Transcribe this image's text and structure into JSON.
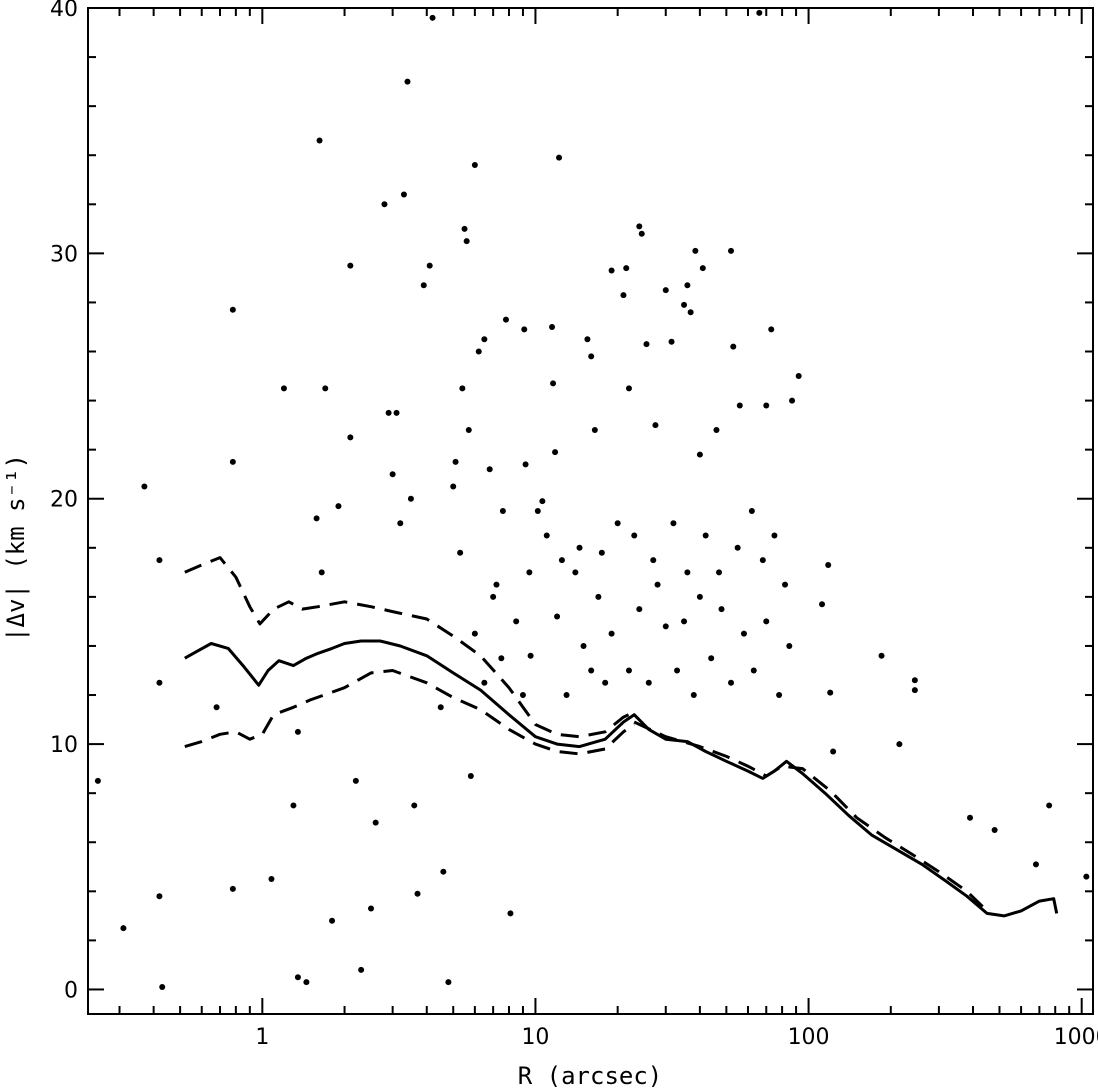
{
  "chart_data": {
    "type": "scatter",
    "title": "",
    "xlabel": "R (arcsec)",
    "ylabel": "|Δv| (km s⁻¹)",
    "x_scale": "log",
    "xlim": [
      0.23,
      1100
    ],
    "ylim": [
      -1,
      40
    ],
    "grid": false,
    "legend": "none",
    "x_ticks": [
      1,
      10,
      100,
      1000
    ],
    "x_tick_labels": [
      "1",
      "10",
      "100",
      "1000"
    ],
    "y_ticks": [
      0,
      10,
      20,
      30,
      40
    ],
    "y_tick_labels": [
      "0",
      "10",
      "20",
      "30",
      "40"
    ],
    "series": [
      {
        "style": "points",
        "color": "#000000",
        "points": [
          [
            0.25,
            8.5
          ],
          [
            0.31,
            2.5
          ],
          [
            0.37,
            20.5
          ],
          [
            0.42,
            17.5
          ],
          [
            0.42,
            12.5
          ],
          [
            0.42,
            3.8
          ],
          [
            0.43,
            0.1
          ],
          [
            0.68,
            11.5
          ],
          [
            0.78,
            27.7
          ],
          [
            0.78,
            21.5
          ],
          [
            0.78,
            4.1
          ],
          [
            1.08,
            4.5
          ],
          [
            1.2,
            24.5
          ],
          [
            1.3,
            7.5
          ],
          [
            1.35,
            10.5
          ],
          [
            1.35,
            0.5
          ],
          [
            1.45,
            0.3
          ],
          [
            1.58,
            19.2
          ],
          [
            1.62,
            34.6
          ],
          [
            1.65,
            17.0
          ],
          [
            1.7,
            24.5
          ],
          [
            1.8,
            2.8
          ],
          [
            1.9,
            19.7
          ],
          [
            2.1,
            29.5
          ],
          [
            2.1,
            22.5
          ],
          [
            2.2,
            8.5
          ],
          [
            2.3,
            0.8
          ],
          [
            2.5,
            3.3
          ],
          [
            2.6,
            6.8
          ],
          [
            2.8,
            32.0
          ],
          [
            2.9,
            23.5
          ],
          [
            3.0,
            21.0
          ],
          [
            3.1,
            23.5
          ],
          [
            3.2,
            19.0
          ],
          [
            3.3,
            32.4
          ],
          [
            3.4,
            37.0
          ],
          [
            3.5,
            20.0
          ],
          [
            3.6,
            7.5
          ],
          [
            3.7,
            3.9
          ],
          [
            3.9,
            28.7
          ],
          [
            4.1,
            29.5
          ],
          [
            4.2,
            39.6
          ],
          [
            4.5,
            11.5
          ],
          [
            4.6,
            4.8
          ],
          [
            4.8,
            0.3
          ],
          [
            5.0,
            20.5
          ],
          [
            5.1,
            21.5
          ],
          [
            5.3,
            17.8
          ],
          [
            5.4,
            24.5
          ],
          [
            5.5,
            31.0
          ],
          [
            5.6,
            30.5
          ],
          [
            5.7,
            22.8
          ],
          [
            5.8,
            8.7
          ],
          [
            6.0,
            33.6
          ],
          [
            6.2,
            26.0
          ],
          [
            6.5,
            26.5
          ],
          [
            6.8,
            21.2
          ],
          [
            7.2,
            16.5
          ],
          [
            7.6,
            19.5
          ],
          [
            7.8,
            27.3
          ],
          [
            8.1,
            3.1
          ],
          [
            9.1,
            26.9
          ],
          [
            9.2,
            21.4
          ],
          [
            9.6,
            13.6
          ],
          [
            10.2,
            19.5
          ],
          [
            10.6,
            19.9
          ],
          [
            11.5,
            27.0
          ],
          [
            11.6,
            24.7
          ],
          [
            11.8,
            21.9
          ],
          [
            12.2,
            33.9
          ],
          [
            15.5,
            26.5
          ],
          [
            16.0,
            25.8
          ],
          [
            16.5,
            22.8
          ],
          [
            19.0,
            29.3
          ],
          [
            20.0,
            19.0
          ],
          [
            21.5,
            29.4
          ],
          [
            21.0,
            28.3
          ],
          [
            22.0,
            24.5
          ],
          [
            24.0,
            31.1
          ],
          [
            24.5,
            30.8
          ],
          [
            25.5,
            26.3
          ],
          [
            27.5,
            23.0
          ],
          [
            30.0,
            28.5
          ],
          [
            31.5,
            26.4
          ],
          [
            35.0,
            27.9
          ],
          [
            36.0,
            28.7
          ],
          [
            37.0,
            27.6
          ],
          [
            38.5,
            30.1
          ],
          [
            40.0,
            21.8
          ],
          [
            41.0,
            29.4
          ],
          [
            46.0,
            22.8
          ],
          [
            52.0,
            30.1
          ],
          [
            53.0,
            26.2
          ],
          [
            56.0,
            23.8
          ],
          [
            66.0,
            39.8
          ],
          [
            70.0,
            23.8
          ],
          [
            73.0,
            26.9
          ],
          [
            87.0,
            24.0
          ],
          [
            92.0,
            25.0
          ],
          [
            112.0,
            15.7
          ],
          [
            118.0,
            17.3
          ],
          [
            120.0,
            12.1
          ],
          [
            123.0,
            9.7
          ],
          [
            185.0,
            13.6
          ],
          [
            215.0,
            10.0
          ],
          [
            245.0,
            12.6
          ],
          [
            245.0,
            12.2
          ],
          [
            390.0,
            7.0
          ],
          [
            480.0,
            6.5
          ],
          [
            680.0,
            5.1
          ],
          [
            760.0,
            7.5
          ],
          [
            1040.0,
            4.6
          ],
          [
            12.0,
            15.2
          ],
          [
            13.0,
            12.0
          ],
          [
            14.0,
            17.0
          ],
          [
            15.0,
            14.0
          ],
          [
            16.0,
            13.0
          ],
          [
            17.0,
            16.0
          ],
          [
            18.0,
            12.5
          ],
          [
            19.0,
            14.5
          ],
          [
            22.0,
            13.0
          ],
          [
            24.0,
            15.5
          ],
          [
            26.0,
            12.5
          ],
          [
            28.0,
            16.5
          ],
          [
            30.0,
            14.8
          ],
          [
            33.0,
            13.0
          ],
          [
            35.0,
            15.0
          ],
          [
            38.0,
            12.0
          ],
          [
            40.0,
            16.0
          ],
          [
            44.0,
            13.5
          ],
          [
            48.0,
            15.5
          ],
          [
            52.0,
            12.5
          ],
          [
            58.0,
            14.5
          ],
          [
            63.0,
            13.0
          ],
          [
            70.0,
            15.0
          ],
          [
            78.0,
            12.0
          ],
          [
            85.0,
            14.0
          ],
          [
            12.5,
            17.5
          ],
          [
            14.5,
            18.0
          ],
          [
            17.5,
            17.8
          ],
          [
            23.0,
            18.5
          ],
          [
            27.0,
            17.5
          ],
          [
            32.0,
            19.0
          ],
          [
            36.0,
            17.0
          ],
          [
            42.0,
            18.5
          ],
          [
            47.0,
            17.0
          ],
          [
            55.0,
            18.0
          ],
          [
            62.0,
            19.5
          ],
          [
            68.0,
            17.5
          ],
          [
            75.0,
            18.5
          ],
          [
            82.0,
            16.5
          ],
          [
            9.0,
            12.0
          ],
          [
            8.5,
            15.0
          ],
          [
            7.5,
            13.5
          ],
          [
            7.0,
            16.0
          ],
          [
            6.5,
            12.5
          ],
          [
            6.0,
            14.5
          ],
          [
            9.5,
            17.0
          ],
          [
            11.0,
            18.5
          ]
        ]
      },
      {
        "style": "solid",
        "color": "#000000",
        "points": [
          [
            0.52,
            13.5
          ],
          [
            0.58,
            13.8
          ],
          [
            0.65,
            14.1
          ],
          [
            0.75,
            13.9
          ],
          [
            0.85,
            13.2
          ],
          [
            0.97,
            12.4
          ],
          [
            1.05,
            13.0
          ],
          [
            1.15,
            13.4
          ],
          [
            1.3,
            13.2
          ],
          [
            1.45,
            13.5
          ],
          [
            1.6,
            13.7
          ],
          [
            1.8,
            13.9
          ],
          [
            2.0,
            14.1
          ],
          [
            2.3,
            14.2
          ],
          [
            2.7,
            14.2
          ],
          [
            3.2,
            14.0
          ],
          [
            4.0,
            13.6
          ],
          [
            5.0,
            12.9
          ],
          [
            6.3,
            12.2
          ],
          [
            8.0,
            11.2
          ],
          [
            10.0,
            10.3
          ],
          [
            12.0,
            10.0
          ],
          [
            14.5,
            9.9
          ],
          [
            18.0,
            10.2
          ],
          [
            21.0,
            10.9
          ],
          [
            23.0,
            11.2
          ],
          [
            26.0,
            10.6
          ],
          [
            30.0,
            10.2
          ],
          [
            36.0,
            10.1
          ],
          [
            42.0,
            9.7
          ],
          [
            50.0,
            9.3
          ],
          [
            60.0,
            8.9
          ],
          [
            68.0,
            8.6
          ],
          [
            75.0,
            8.9
          ],
          [
            83.0,
            9.3
          ],
          [
            95.0,
            8.8
          ],
          [
            115.0,
            8.0
          ],
          [
            140.0,
            7.1
          ],
          [
            170.0,
            6.3
          ],
          [
            210.0,
            5.7
          ],
          [
            260.0,
            5.1
          ],
          [
            320.0,
            4.4
          ],
          [
            380.0,
            3.8
          ],
          [
            450.0,
            3.1
          ],
          [
            520.0,
            3.0
          ],
          [
            600.0,
            3.2
          ],
          [
            700.0,
            3.6
          ],
          [
            790.0,
            3.7
          ],
          [
            810.0,
            3.1
          ]
        ]
      },
      {
        "style": "dashed",
        "color": "#000000",
        "points": [
          [
            0.52,
            17.0
          ],
          [
            0.6,
            17.3
          ],
          [
            0.7,
            17.6
          ],
          [
            0.8,
            16.8
          ],
          [
            0.9,
            15.6
          ],
          [
            0.98,
            14.9
          ],
          [
            1.1,
            15.5
          ],
          [
            1.25,
            15.8
          ],
          [
            1.4,
            15.5
          ],
          [
            1.6,
            15.6
          ],
          [
            2.0,
            15.8
          ],
          [
            2.5,
            15.6
          ],
          [
            3.0,
            15.4
          ],
          [
            4.0,
            15.1
          ],
          [
            5.0,
            14.4
          ],
          [
            6.3,
            13.6
          ],
          [
            8.0,
            12.3
          ],
          [
            10.0,
            10.8
          ],
          [
            12.0,
            10.4
          ],
          [
            14.5,
            10.3
          ],
          [
            18.0,
            10.5
          ],
          [
            21.0,
            11.1
          ],
          [
            23.0,
            11.3
          ]
        ]
      },
      {
        "style": "dashed",
        "color": "#000000",
        "points": [
          [
            0.52,
            9.9
          ],
          [
            0.6,
            10.1
          ],
          [
            0.7,
            10.4
          ],
          [
            0.8,
            10.5
          ],
          [
            0.9,
            10.2
          ],
          [
            1.0,
            10.4
          ],
          [
            1.1,
            11.2
          ],
          [
            1.3,
            11.5
          ],
          [
            1.5,
            11.8
          ],
          [
            2.0,
            12.3
          ],
          [
            2.5,
            12.9
          ],
          [
            3.0,
            13.0
          ],
          [
            4.0,
            12.5
          ],
          [
            5.0,
            11.9
          ],
          [
            6.3,
            11.4
          ],
          [
            8.0,
            10.6
          ],
          [
            10.0,
            10.0
          ],
          [
            12.0,
            9.7
          ],
          [
            14.5,
            9.6
          ],
          [
            18.0,
            9.8
          ],
          [
            21.0,
            10.5
          ],
          [
            23.0,
            10.8
          ]
        ]
      },
      {
        "style": "dashed",
        "color": "#000000",
        "points": [
          [
            23.0,
            10.9
          ],
          [
            30.0,
            10.3
          ],
          [
            40.0,
            9.9
          ],
          [
            50.0,
            9.5
          ],
          [
            60.0,
            9.1
          ],
          [
            70.0,
            8.7
          ],
          [
            80.0,
            9.1
          ],
          [
            95.0,
            9.0
          ],
          [
            120.0,
            8.1
          ],
          [
            150.0,
            7.0
          ],
          [
            190.0,
            6.2
          ],
          [
            240.0,
            5.5
          ],
          [
            300.0,
            4.8
          ],
          [
            380.0,
            4.0
          ],
          [
            450.0,
            3.2
          ]
        ]
      }
    ]
  }
}
